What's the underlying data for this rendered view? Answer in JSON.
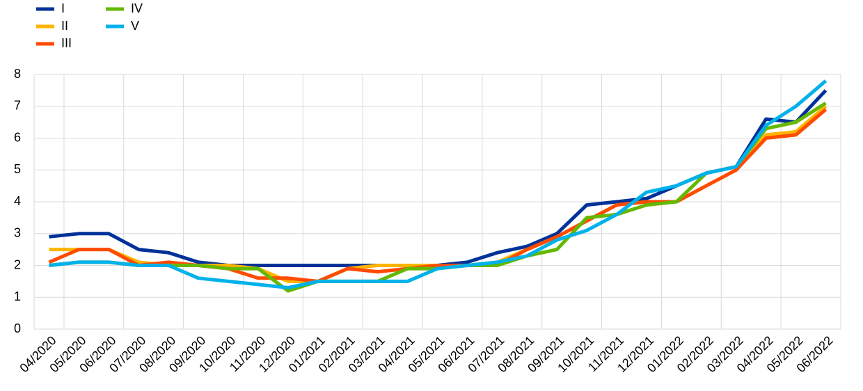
{
  "chart_data": {
    "type": "line",
    "categories": [
      "04/2020",
      "05/2020",
      "06/2020",
      "07/2020",
      "08/2020",
      "09/2020",
      "10/2020",
      "11/2020",
      "12/2020",
      "01/2021",
      "02/2021",
      "03/2021",
      "04/2021",
      "05/2021",
      "06/2021",
      "07/2021",
      "08/2021",
      "09/2021",
      "10/2021",
      "11/2021",
      "12/2021",
      "01/2022",
      "02/2022",
      "03/2022",
      "04/2022",
      "05/2022",
      "06/2022"
    ],
    "series": [
      {
        "name": "I",
        "color": "#003299",
        "values": [
          2.9,
          3.0,
          3.0,
          2.5,
          2.4,
          2.1,
          2.0,
          2.0,
          2.0,
          2.0,
          2.0,
          2.0,
          2.0,
          2.0,
          2.1,
          2.4,
          2.6,
          3.0,
          3.9,
          4.0,
          4.1,
          4.5,
          4.9,
          5.1,
          6.6,
          6.5,
          7.5
        ]
      },
      {
        "name": "II",
        "color": "#ffb400",
        "values": [
          2.5,
          2.5,
          2.5,
          2.1,
          2.0,
          2.0,
          2.0,
          1.9,
          1.5,
          1.5,
          1.9,
          2.0,
          2.0,
          2.0,
          2.0,
          2.1,
          2.5,
          2.9,
          3.4,
          3.9,
          4.0,
          4.0,
          4.5,
          5.0,
          6.1,
          6.2,
          7.0
        ]
      },
      {
        "name": "III",
        "color": "#ff4b00",
        "values": [
          2.1,
          2.5,
          2.5,
          2.0,
          2.1,
          2.0,
          1.9,
          1.6,
          1.6,
          1.5,
          1.9,
          1.8,
          1.9,
          2.0,
          2.0,
          2.0,
          2.5,
          2.9,
          3.4,
          3.9,
          4.0,
          4.0,
          4.5,
          5.0,
          6.0,
          6.1,
          6.9
        ]
      },
      {
        "name": "IV",
        "color": "#65b800",
        "values": [
          2.0,
          2.1,
          2.1,
          2.0,
          2.0,
          2.0,
          1.9,
          1.9,
          1.2,
          1.5,
          1.5,
          1.5,
          1.9,
          1.9,
          2.0,
          2.0,
          2.3,
          2.5,
          3.5,
          3.6,
          3.9,
          4.0,
          4.9,
          5.1,
          6.3,
          6.5,
          7.1
        ]
      },
      {
        "name": "V",
        "color": "#00b1ea",
        "values": [
          2.0,
          2.1,
          2.1,
          2.0,
          2.0,
          1.6,
          1.5,
          1.4,
          1.3,
          1.5,
          1.5,
          1.5,
          1.5,
          1.9,
          2.0,
          2.1,
          2.3,
          2.8,
          3.1,
          3.6,
          4.3,
          4.5,
          4.9,
          5.1,
          6.4,
          7.0,
          7.8
        ]
      }
    ],
    "ylim": [
      0,
      8
    ],
    "yticks": [
      0,
      1,
      2,
      3,
      4,
      5,
      6,
      7,
      8
    ],
    "grid": true,
    "legend": "top-left"
  }
}
